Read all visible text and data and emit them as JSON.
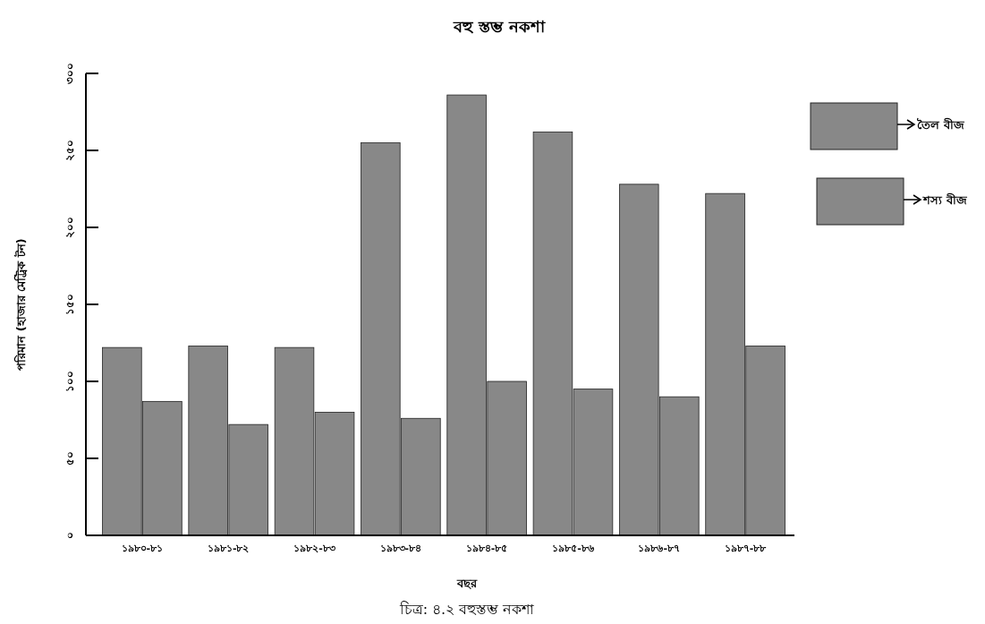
{
  "chart_data": {
    "type": "bar",
    "title": "বহু স্তম্ভ নকশা",
    "xlabel": "বছর",
    "ylabel": "পরিমান (হাজার মেট্রিক টন)",
    "categories": [
      "১৯৮০-৮১",
      "১৯৮১-৮২",
      "১৯৮২-৮৩",
      "১৯৮৩-৮৪",
      "১৯৮৪-৮৫",
      "১৯৮৫-৮৬",
      "১৯৮৬-৮৭",
      "১৯৮৭-৮৮"
    ],
    "series": [
      {
        "name": "তৈল বীজ",
        "color": "#888888",
        "values": [
          122,
          123,
          122,
          255,
          286,
          262,
          228,
          222
        ]
      },
      {
        "name": "শস্য বীজ",
        "color": "#888888",
        "values": [
          87,
          72,
          80,
          76,
          100,
          95,
          90,
          123
        ]
      }
    ],
    "ylim": [
      0,
      300
    ],
    "yticks": [
      {
        "value": 0,
        "label": "০"
      },
      {
        "value": 50,
        "label": "৫০"
      },
      {
        "value": 100,
        "label": "১০০"
      },
      {
        "value": 150,
        "label": "১৫০"
      },
      {
        "value": 200,
        "label": "২০০"
      },
      {
        "value": 250,
        "label": "২৫০"
      },
      {
        "value": 300,
        "label": "৩০০"
      }
    ],
    "legend": "right",
    "grid": false,
    "annotations": [
      "চিত্র: ৪.২ বহুস্তম্ভ নকশা"
    ]
  }
}
